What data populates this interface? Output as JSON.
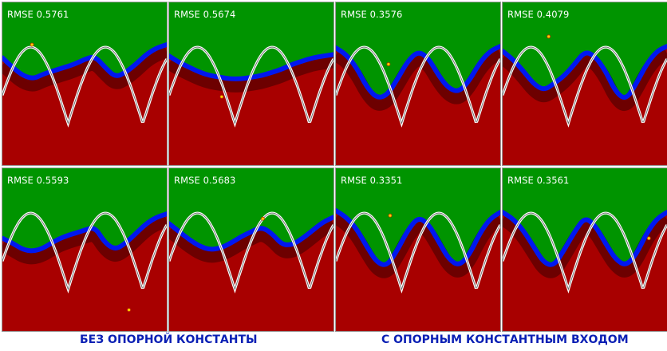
{
  "colors": {
    "class_a": "#009400",
    "class_b": "#a80000",
    "boundary": "#0018f0",
    "target_curve": "#ffffff",
    "label": "#0a1fb4"
  },
  "group_labels": {
    "left": "БЕЗ ОПОРНОЙ КОНСТАНТЫ",
    "right": "С ОПОРНЫМ КОНСТАНТНЫМ ВХОДОМ"
  },
  "panels": [
    {
      "rmse": "RMSE 0.5761",
      "boundary": [
        0.34,
        0.4,
        0.45,
        0.47,
        0.44,
        0.42,
        0.4,
        0.38,
        0.35,
        0.33,
        0.4,
        0.46,
        0.43,
        0.38,
        0.32,
        0.28,
        0.26
      ],
      "marker": [
        0.18,
        0.26
      ]
    },
    {
      "rmse": "RMSE 0.5674",
      "boundary": [
        0.33,
        0.37,
        0.4,
        0.43,
        0.45,
        0.46,
        0.47,
        0.47,
        0.46,
        0.45,
        0.43,
        0.41,
        0.38,
        0.36,
        0.34,
        0.33,
        0.32
      ],
      "marker": [
        0.32,
        0.58
      ]
    },
    {
      "rmse": "RMSE 0.3576",
      "boundary": [
        0.28,
        0.32,
        0.4,
        0.52,
        0.59,
        0.57,
        0.47,
        0.36,
        0.3,
        0.34,
        0.45,
        0.53,
        0.55,
        0.48,
        0.37,
        0.3,
        0.27
      ],
      "marker": [
        0.32,
        0.38
      ]
    },
    {
      "rmse": "RMSE 0.4079",
      "boundary": [
        0.3,
        0.35,
        0.42,
        0.5,
        0.54,
        0.5,
        0.45,
        0.38,
        0.3,
        0.33,
        0.42,
        0.55,
        0.6,
        0.5,
        0.38,
        0.3,
        0.27
      ],
      "marker": [
        0.28,
        0.21
      ]
    },
    {
      "rmse": "RMSE 0.5593",
      "boundary": [
        0.43,
        0.46,
        0.5,
        0.51,
        0.49,
        0.45,
        0.42,
        0.4,
        0.38,
        0.36,
        0.46,
        0.5,
        0.46,
        0.4,
        0.34,
        0.3,
        0.28
      ],
      "marker": [
        0.77,
        0.87
      ]
    },
    {
      "rmse": "RMSE 0.5683",
      "boundary": [
        0.34,
        0.39,
        0.44,
        0.48,
        0.5,
        0.49,
        0.46,
        0.42,
        0.39,
        0.36,
        0.4,
        0.47,
        0.47,
        0.43,
        0.38,
        0.33,
        0.3
      ],
      "marker": [
        0.57,
        0.31
      ]
    },
    {
      "rmse": "RMSE 0.3351",
      "boundary": [
        0.26,
        0.3,
        0.37,
        0.48,
        0.58,
        0.6,
        0.5,
        0.38,
        0.3,
        0.34,
        0.45,
        0.56,
        0.6,
        0.53,
        0.4,
        0.31,
        0.27
      ],
      "marker": [
        0.33,
        0.29
      ]
    },
    {
      "rmse": "RMSE 0.3561",
      "boundary": [
        0.27,
        0.31,
        0.38,
        0.48,
        0.58,
        0.6,
        0.5,
        0.39,
        0.3,
        0.35,
        0.46,
        0.56,
        0.6,
        0.53,
        0.4,
        0.31,
        0.27
      ],
      "marker": [
        0.89,
        0.43
      ]
    }
  ]
}
